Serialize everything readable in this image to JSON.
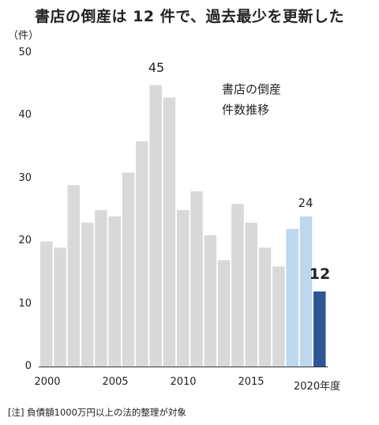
{
  "title": "書店の倒産は 12 件で、過去最少を更新した",
  "unit": "（件）",
  "annotation": {
    "line1": "書店の倒産",
    "line2": "件数推移"
  },
  "note": "[注] 負債額1000万円以上の法的整理が対象",
  "colors": {
    "gray": "#d9d9d9",
    "light_blue": "#bdd7ee",
    "dark_blue": "#2f5597",
    "axis": "#333333"
  },
  "chart_data": {
    "type": "bar",
    "title": "書店の倒産は 12 件で、過去最少を更新した",
    "ylabel": "（件）",
    "ylim": [
      0,
      50
    ],
    "yticks": [
      "0",
      "10",
      "20",
      "30",
      "40",
      "50"
    ],
    "xtick_labels": [
      "2000",
      "2005",
      "2010",
      "2015",
      "2020年度"
    ],
    "categories": [
      "2000",
      "2001",
      "2002",
      "2003",
      "2004",
      "2005",
      "2006",
      "2007",
      "2008",
      "2009",
      "2010",
      "2011",
      "2012",
      "2013",
      "2014",
      "2015",
      "2016",
      "2017",
      "2018",
      "2019",
      "2020"
    ],
    "values": [
      20,
      19,
      29,
      23,
      25,
      24,
      31,
      36,
      45,
      43,
      25,
      28,
      21,
      17,
      26,
      23,
      19,
      16,
      22,
      24,
      12
    ],
    "data_labels": [
      {
        "category": "2008",
        "text": "45"
      },
      {
        "category": "2019",
        "text": "24"
      },
      {
        "category": "2020",
        "text": "12"
      }
    ],
    "highlight": {
      "2018": "light_blue",
      "2019": "light_blue",
      "2020": "dark_blue"
    }
  }
}
